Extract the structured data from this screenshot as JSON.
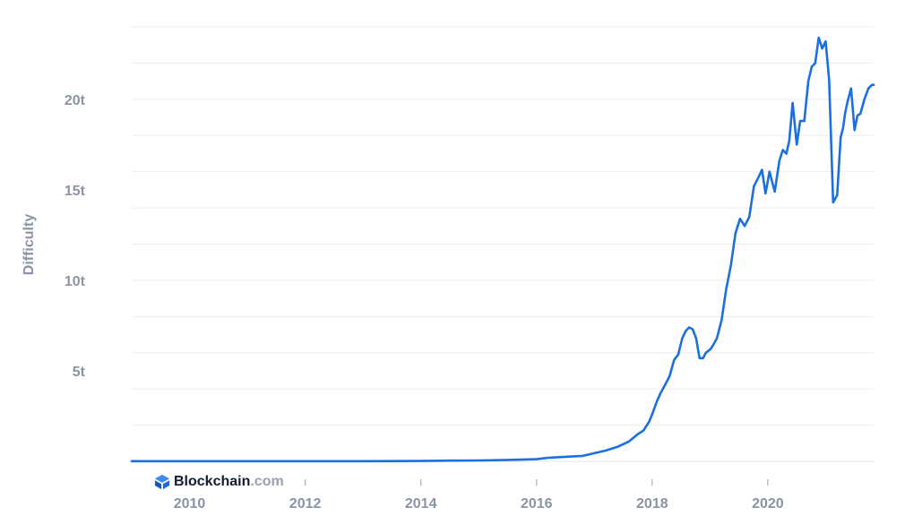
{
  "brand": {
    "name": "Blockchain",
    "tld": ".com",
    "icon": "blockchain-logo-icon"
  },
  "chart_data": {
    "type": "line",
    "ylabel": "Difficulty",
    "xlabel": "",
    "title": "",
    "x_ticks": [
      "2010",
      "2012",
      "2014",
      "2016",
      "2018",
      "2020"
    ],
    "y_ticks": [
      "5t",
      "10t",
      "15t",
      "20t"
    ],
    "y_tick_values": [
      5,
      10,
      15,
      20
    ],
    "xlim": [
      2009.0,
      2021.83
    ],
    "ylim": [
      0,
      24
    ],
    "grid": true,
    "line_color": "#1b6fe0",
    "series": [
      {
        "x": [
          2009.0,
          2010.0,
          2011.0,
          2012.0,
          2013.0,
          2014.0,
          2014.5,
          2015.0,
          2015.5,
          2016.0,
          2016.2,
          2016.5,
          2016.8,
          2017.0,
          2017.2,
          2017.4,
          2017.6,
          2017.75,
          2017.85,
          2017.95,
          2018.0,
          2018.08,
          2018.15,
          2018.22,
          2018.3,
          2018.38,
          2018.45,
          2018.52,
          2018.58,
          2018.64,
          2018.7,
          2018.76,
          2018.82,
          2018.88,
          2018.93,
          2018.97,
          2019.01,
          2019.05,
          2019.12,
          2019.2,
          2019.28,
          2019.36,
          2019.44,
          2019.52,
          2019.6,
          2019.68,
          2019.76,
          2019.84,
          2019.9,
          2019.96,
          2020.03,
          2020.12,
          2020.2,
          2020.26,
          2020.32,
          2020.37,
          2020.43,
          2020.5,
          2020.56,
          2020.63,
          2020.7,
          2020.76,
          2020.82,
          2020.88,
          2020.94,
          2021.0,
          2021.06,
          2021.13,
          2021.2,
          2021.26,
          2021.3,
          2021.34,
          2021.38,
          2021.44,
          2021.5,
          2021.55,
          2021.6,
          2021.67,
          2021.74,
          2021.8,
          2021.83
        ],
        "values": [
          0.01,
          0.01,
          0.01,
          0.01,
          0.01,
          0.02,
          0.04,
          0.05,
          0.08,
          0.12,
          0.2,
          0.25,
          0.3,
          0.45,
          0.6,
          0.8,
          1.1,
          1.5,
          1.7,
          2.2,
          2.6,
          3.3,
          3.8,
          4.2,
          4.7,
          5.6,
          5.9,
          6.8,
          7.2,
          7.4,
          7.3,
          6.8,
          5.7,
          5.7,
          6.0,
          6.1,
          6.2,
          6.4,
          6.8,
          7.8,
          9.5,
          10.8,
          12.6,
          13.4,
          13.0,
          13.5,
          15.2,
          15.7,
          16.1,
          14.8,
          16.0,
          14.9,
          16.6,
          17.2,
          17.0,
          17.7,
          19.8,
          17.5,
          18.8,
          18.8,
          21.0,
          21.8,
          22.0,
          23.4,
          22.8,
          23.2,
          21.1,
          14.3,
          14.7,
          17.9,
          18.4,
          19.3,
          19.9,
          20.6,
          18.3,
          19.1,
          19.2,
          20.0,
          20.6,
          20.8,
          20.8
        ]
      }
    ]
  }
}
